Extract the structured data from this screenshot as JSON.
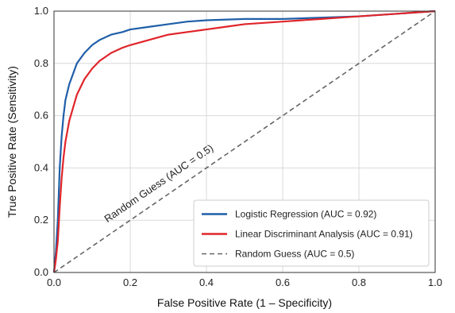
{
  "chart_data": {
    "type": "line",
    "title": "",
    "xlabel": "False Positive Rate (1 – Specificity)",
    "ylabel": "True Positive Rate (Sensitivity)",
    "xlim": [
      0,
      1
    ],
    "ylim": [
      0,
      1
    ],
    "x_ticks": [
      "0.0",
      "0.2",
      "0.4",
      "0.6",
      "0.8",
      "1.0"
    ],
    "y_ticks": [
      "0.0",
      "0.2",
      "0.4",
      "0.6",
      "0.8",
      "1.0"
    ],
    "grid": true,
    "legend_position": "bottom-right",
    "series": [
      {
        "name": "Logistic Regression (AUC = 0.92)",
        "color": "#1f5fa8",
        "style": "solid",
        "x": [
          0,
          0.005,
          0.01,
          0.015,
          0.02,
          0.025,
          0.03,
          0.04,
          0.05,
          0.06,
          0.08,
          0.1,
          0.12,
          0.15,
          0.18,
          0.2,
          0.25,
          0.3,
          0.35,
          0.4,
          0.5,
          0.6,
          0.7,
          0.8,
          0.9,
          1.0
        ],
        "y": [
          0,
          0.08,
          0.2,
          0.4,
          0.52,
          0.6,
          0.66,
          0.72,
          0.76,
          0.8,
          0.84,
          0.87,
          0.89,
          0.91,
          0.92,
          0.93,
          0.94,
          0.95,
          0.96,
          0.965,
          0.97,
          0.97,
          0.975,
          0.98,
          0.99,
          1.0
        ]
      },
      {
        "name": "Linear Discriminant Analysis (AUC = 0.91)",
        "color": "#e0252a",
        "style": "solid",
        "x": [
          0,
          0.005,
          0.01,
          0.015,
          0.02,
          0.025,
          0.03,
          0.04,
          0.05,
          0.06,
          0.08,
          0.1,
          0.12,
          0.15,
          0.18,
          0.2,
          0.25,
          0.3,
          0.35,
          0.4,
          0.45,
          0.5,
          0.6,
          0.7,
          0.8,
          0.9,
          1.0
        ],
        "y": [
          0,
          0.05,
          0.12,
          0.25,
          0.36,
          0.44,
          0.5,
          0.58,
          0.63,
          0.68,
          0.74,
          0.78,
          0.81,
          0.84,
          0.86,
          0.87,
          0.89,
          0.91,
          0.92,
          0.93,
          0.94,
          0.95,
          0.96,
          0.97,
          0.98,
          0.99,
          1.0
        ]
      },
      {
        "name": "Random Guess (AUC = 0.5)",
        "color": "#666666",
        "style": "dashed",
        "x": [
          0,
          1
        ],
        "y": [
          0,
          1
        ]
      }
    ],
    "annotations": [
      {
        "text": "Random Guess (AUC = 0.5)",
        "x": 0.28,
        "y": 0.33
      }
    ]
  }
}
